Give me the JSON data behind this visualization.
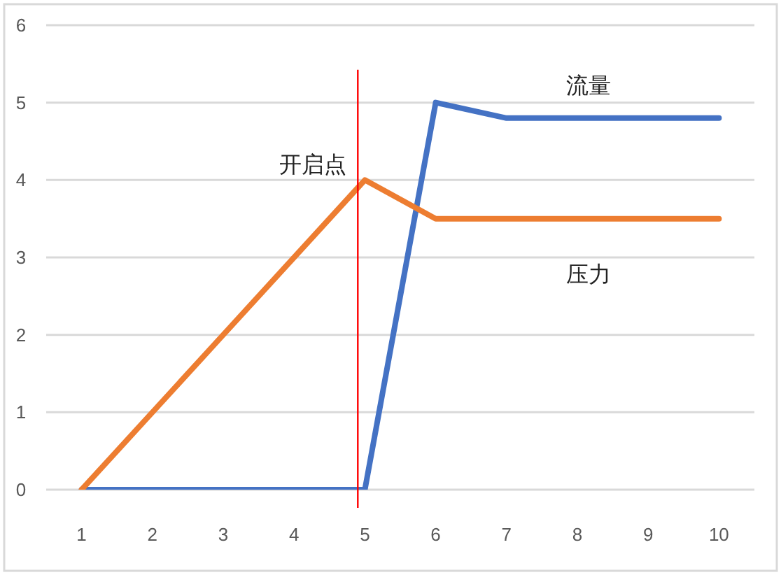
{
  "chart_data": {
    "type": "line",
    "x": [
      1,
      2,
      3,
      4,
      5,
      6,
      7,
      8,
      9,
      10
    ],
    "xlim": [
      0.5,
      10.5
    ],
    "xticks": [
      1,
      2,
      3,
      4,
      5,
      6,
      7,
      8,
      9,
      10
    ],
    "ylim": [
      0,
      6
    ],
    "yticks": [
      0,
      1,
      2,
      3,
      4,
      5,
      6
    ],
    "grid": "y",
    "line_style": "solid",
    "series": [
      {
        "name": "流量",
        "color": "#4472c4",
        "values": [
          0,
          0,
          0,
          0,
          0,
          5,
          4.8,
          4.8,
          4.8,
          4.8
        ]
      },
      {
        "name": "压力",
        "color": "#ed7d31",
        "values": [
          0,
          1,
          2,
          3,
          4,
          3.5,
          3.5,
          3.5,
          3.5,
          3.5
        ]
      }
    ],
    "ref_lines": [
      {
        "axis": "x",
        "value": 4.9,
        "label": "开启点",
        "color": "#ff0000"
      }
    ]
  }
}
